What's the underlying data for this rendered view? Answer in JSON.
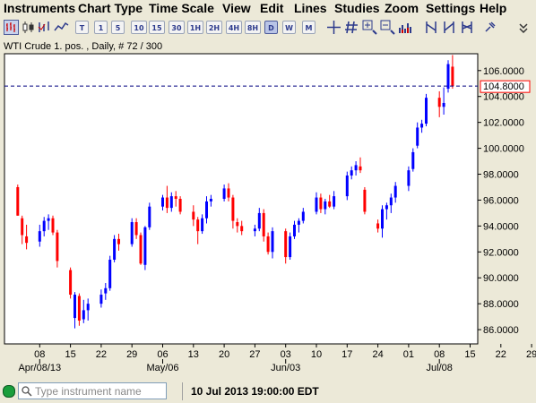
{
  "menu": [
    "Instruments",
    "Chart Type",
    "Time Scale",
    "View",
    "Edit",
    "Lines",
    "Studies",
    "Zoom",
    "Settings",
    "Help"
  ],
  "toolbar": {
    "timeframes": [
      "T",
      "1",
      "5",
      "10",
      "15",
      "30",
      "1H",
      "2H",
      "4H",
      "8H",
      "D",
      "W",
      "M"
    ],
    "active_timeframe": "D",
    "icons": [
      "bar-chart-icon",
      "candlestick-icon",
      "line-chart-icon",
      "crosshair-icon",
      "grid-icon",
      "zoom-in-icon",
      "zoom-out-icon",
      "zoom-fit-icon",
      "volume-icon",
      "trendline-icon",
      "fibonacci-icon",
      "channel-icon",
      "channel-alt-icon",
      "pin-icon",
      "overflow-chevron-icon"
    ]
  },
  "chart_header": "WTI Crude 1. pos. , Daily, # 72 / 300",
  "status": {
    "search_placeholder": "Type instrument name",
    "timestamp": "10 Jul 2013 19:00:00 EDT"
  },
  "colors": {
    "up": "#0000ff",
    "down": "#ff0000",
    "price_line": "#000080",
    "price_box": "#ff0000",
    "background": "#ffffff"
  },
  "chart_data": {
    "type": "candlestick",
    "title": "WTI Crude 1. pos. , Daily, # 72 / 300",
    "current_price": "104.8000",
    "y_axis": {
      "range": [
        84.9,
        107.3
      ],
      "ticks": [
        "86.0000",
        "88.0000",
        "90.0000",
        "92.0000",
        "94.0000",
        "96.0000",
        "98.0000",
        "100.0000",
        "102.0000",
        "104.0000",
        "106.0000"
      ]
    },
    "x_axis": {
      "day_ticks": [
        "08",
        "15",
        "22",
        "29",
        "06",
        "13",
        "20",
        "27",
        "03",
        "10",
        "17",
        "24",
        "01",
        "08",
        "15",
        "22",
        "29"
      ],
      "month_labels": [
        "Apr/08/13",
        "May/06",
        "Jun/03",
        "Jul/08"
      ]
    },
    "candles": [
      {
        "date": "2013-04-03",
        "o": 97.0,
        "h": 97.2,
        "l": 94.8,
        "c": 94.8
      },
      {
        "date": "2013-04-04",
        "o": 94.6,
        "h": 94.8,
        "l": 92.6,
        "c": 93.3
      },
      {
        "date": "2013-04-05",
        "o": 93.2,
        "h": 94.1,
        "l": 92.2,
        "c": 92.7
      },
      {
        "date": "2013-04-08",
        "o": 92.8,
        "h": 94.1,
        "l": 92.4,
        "c": 93.6
      },
      {
        "date": "2013-04-09",
        "o": 93.6,
        "h": 94.7,
        "l": 93.2,
        "c": 94.4
      },
      {
        "date": "2013-04-10",
        "o": 94.4,
        "h": 94.9,
        "l": 93.7,
        "c": 94.6
      },
      {
        "date": "2013-04-11",
        "o": 94.6,
        "h": 94.8,
        "l": 93.3,
        "c": 93.5
      },
      {
        "date": "2013-04-12",
        "o": 93.5,
        "h": 93.7,
        "l": 90.8,
        "c": 91.3
      },
      {
        "date": "2013-04-15",
        "o": 90.6,
        "h": 90.8,
        "l": 88.4,
        "c": 88.7
      },
      {
        "date": "2013-04-16",
        "o": 86.9,
        "h": 88.9,
        "l": 86.1,
        "c": 88.7
      },
      {
        "date": "2013-04-17",
        "o": 88.6,
        "h": 88.8,
        "l": 86.3,
        "c": 86.7
      },
      {
        "date": "2013-04-18",
        "o": 86.8,
        "h": 88.3,
        "l": 86.5,
        "c": 87.5
      },
      {
        "date": "2013-04-19",
        "o": 87.5,
        "h": 88.4,
        "l": 86.7,
        "c": 88.0
      },
      {
        "date": "2013-04-22",
        "o": 88.0,
        "h": 89.1,
        "l": 87.7,
        "c": 88.7
      },
      {
        "date": "2013-04-23",
        "o": 88.8,
        "h": 89.6,
        "l": 88.3,
        "c": 89.2
      },
      {
        "date": "2013-04-24",
        "o": 89.2,
        "h": 91.7,
        "l": 89.0,
        "c": 91.4
      },
      {
        "date": "2013-04-25",
        "o": 91.4,
        "h": 93.3,
        "l": 91.2,
        "c": 93.0
      },
      {
        "date": "2013-04-26",
        "o": 93.0,
        "h": 93.4,
        "l": 92.1,
        "c": 92.6
      },
      {
        "date": "2013-04-29",
        "o": 92.6,
        "h": 94.6,
        "l": 92.4,
        "c": 94.3
      },
      {
        "date": "2013-04-30",
        "o": 94.3,
        "h": 94.6,
        "l": 93.0,
        "c": 93.3
      },
      {
        "date": "2013-05-01",
        "o": 93.3,
        "h": 93.5,
        "l": 91.0,
        "c": 91.1
      },
      {
        "date": "2013-05-02",
        "o": 91.0,
        "h": 94.0,
        "l": 90.6,
        "c": 93.9
      },
      {
        "date": "2013-05-03",
        "o": 93.9,
        "h": 95.8,
        "l": 93.7,
        "c": 95.5
      },
      {
        "date": "2013-05-06",
        "o": 95.5,
        "h": 96.4,
        "l": 95.2,
        "c": 96.2
      },
      {
        "date": "2013-05-07",
        "o": 96.2,
        "h": 97.1,
        "l": 95.0,
        "c": 95.4
      },
      {
        "date": "2013-05-08",
        "o": 95.4,
        "h": 96.6,
        "l": 95.1,
        "c": 96.3
      },
      {
        "date": "2013-05-09",
        "o": 96.3,
        "h": 96.7,
        "l": 95.5,
        "c": 96.1
      },
      {
        "date": "2013-05-10",
        "o": 96.1,
        "h": 96.3,
        "l": 94.9,
        "c": 95.1
      },
      {
        "date": "2013-05-13",
        "o": 95.1,
        "h": 95.6,
        "l": 94.0,
        "c": 94.5
      },
      {
        "date": "2013-05-14",
        "o": 94.5,
        "h": 94.7,
        "l": 92.6,
        "c": 93.6
      },
      {
        "date": "2013-05-15",
        "o": 93.6,
        "h": 94.9,
        "l": 93.4,
        "c": 94.6
      },
      {
        "date": "2013-05-16",
        "o": 94.6,
        "h": 96.3,
        "l": 94.2,
        "c": 95.9
      },
      {
        "date": "2013-05-17",
        "o": 95.9,
        "h": 96.4,
        "l": 95.5,
        "c": 96.1
      },
      {
        "date": "2013-05-20",
        "o": 96.1,
        "h": 97.2,
        "l": 95.9,
        "c": 96.9
      },
      {
        "date": "2013-05-21",
        "o": 96.9,
        "h": 97.3,
        "l": 95.9,
        "c": 96.2
      },
      {
        "date": "2013-05-22",
        "o": 96.2,
        "h": 96.4,
        "l": 93.8,
        "c": 94.4
      },
      {
        "date": "2013-05-23",
        "o": 94.3,
        "h": 94.6,
        "l": 93.5,
        "c": 94.0
      },
      {
        "date": "2013-05-24",
        "o": 94.0,
        "h": 94.4,
        "l": 93.3,
        "c": 93.6
      },
      {
        "date": "2013-05-27",
        "o": 93.6,
        "h": 94.1,
        "l": 93.2,
        "c": 93.8
      },
      {
        "date": "2013-05-28",
        "o": 93.8,
        "h": 95.4,
        "l": 93.6,
        "c": 95.0
      },
      {
        "date": "2013-05-29",
        "o": 95.0,
        "h": 95.3,
        "l": 92.8,
        "c": 93.2
      },
      {
        "date": "2013-05-30",
        "o": 93.2,
        "h": 93.5,
        "l": 91.8,
        "c": 92.0
      },
      {
        "date": "2013-05-31",
        "o": 92.0,
        "h": 93.9,
        "l": 91.5,
        "c": 93.6
      },
      {
        "date": "2013-06-03",
        "o": 93.6,
        "h": 93.8,
        "l": 91.1,
        "c": 91.6
      },
      {
        "date": "2013-06-04",
        "o": 91.6,
        "h": 93.5,
        "l": 91.4,
        "c": 93.2
      },
      {
        "date": "2013-06-05",
        "o": 93.2,
        "h": 94.4,
        "l": 93.0,
        "c": 94.1
      },
      {
        "date": "2013-06-06",
        "o": 94.1,
        "h": 94.6,
        "l": 93.5,
        "c": 94.4
      },
      {
        "date": "2013-06-07",
        "o": 94.4,
        "h": 95.4,
        "l": 94.2,
        "c": 95.1
      },
      {
        "date": "2013-06-10",
        "o": 95.1,
        "h": 96.6,
        "l": 94.9,
        "c": 96.2
      },
      {
        "date": "2013-06-11",
        "o": 96.2,
        "h": 96.5,
        "l": 95.0,
        "c": 95.3
      },
      {
        "date": "2013-06-12",
        "o": 95.3,
        "h": 96.1,
        "l": 94.9,
        "c": 95.9
      },
      {
        "date": "2013-06-13",
        "o": 95.9,
        "h": 96.4,
        "l": 95.4,
        "c": 95.5
      },
      {
        "date": "2013-06-14",
        "o": 95.5,
        "h": 96.7,
        "l": 95.3,
        "c": 96.3
      },
      {
        "date": "2013-06-17",
        "o": 96.3,
        "h": 98.2,
        "l": 96.0,
        "c": 97.9
      },
      {
        "date": "2013-06-18",
        "o": 97.9,
        "h": 98.6,
        "l": 97.6,
        "c": 98.3
      },
      {
        "date": "2013-06-19",
        "o": 98.3,
        "h": 99.0,
        "l": 97.9,
        "c": 98.7
      },
      {
        "date": "2013-06-20",
        "o": 98.6,
        "h": 99.3,
        "l": 98.1,
        "c": 98.3
      },
      {
        "date": "2013-06-21",
        "o": 96.8,
        "h": 97.0,
        "l": 94.9,
        "c": 95.1
      },
      {
        "date": "2013-06-24",
        "o": 94.2,
        "h": 94.5,
        "l": 93.5,
        "c": 93.8
      },
      {
        "date": "2013-06-25",
        "o": 93.8,
        "h": 95.6,
        "l": 93.1,
        "c": 95.3
      },
      {
        "date": "2013-06-26",
        "o": 95.3,
        "h": 95.8,
        "l": 94.5,
        "c": 95.6
      },
      {
        "date": "2013-06-27",
        "o": 95.6,
        "h": 96.5,
        "l": 95.0,
        "c": 96.2
      },
      {
        "date": "2013-06-28",
        "o": 96.2,
        "h": 97.4,
        "l": 95.8,
        "c": 97.1
      },
      {
        "date": "2013-07-01",
        "o": 97.1,
        "h": 98.6,
        "l": 96.7,
        "c": 98.3
      },
      {
        "date": "2013-07-02",
        "o": 98.4,
        "h": 100.0,
        "l": 98.2,
        "c": 99.7
      },
      {
        "date": "2013-07-03",
        "o": 100.2,
        "h": 102.0,
        "l": 100.0,
        "c": 101.6
      },
      {
        "date": "2013-07-04",
        "o": 101.6,
        "h": 102.2,
        "l": 101.2,
        "c": 101.9
      },
      {
        "date": "2013-07-05",
        "o": 101.9,
        "h": 104.2,
        "l": 101.7,
        "c": 103.9
      },
      {
        "date": "2013-07-08",
        "o": 103.9,
        "h": 104.4,
        "l": 102.4,
        "c": 103.2
      },
      {
        "date": "2013-07-09",
        "o": 103.2,
        "h": 104.7,
        "l": 102.6,
        "c": 103.5
      },
      {
        "date": "2013-07-10",
        "o": 104.6,
        "h": 106.8,
        "l": 104.3,
        "c": 106.5
      },
      {
        "date": "2013-07-11",
        "o": 106.3,
        "h": 107.2,
        "l": 104.6,
        "c": 104.8
      }
    ]
  }
}
